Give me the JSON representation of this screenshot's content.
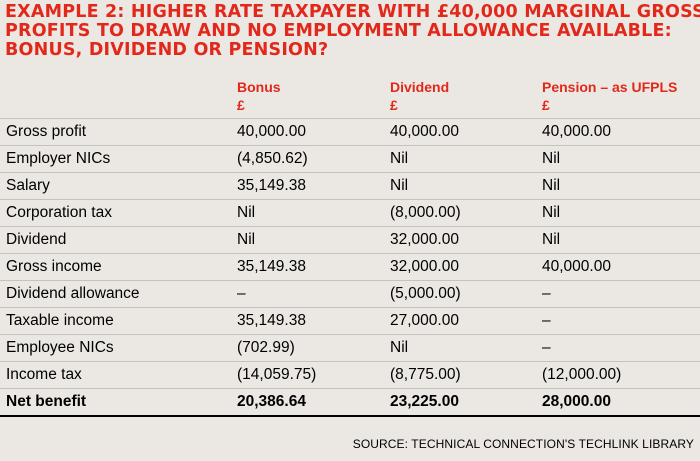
{
  "title_lines": [
    "EXAMPLE 2: HIGHER RATE TAXPAYER WITH £40,000 MARGINAL GROSS",
    "PROFITS TO DRAW AND NO EMPLOYMENT ALLOWANCE AVAILABLE:",
    "BONUS, DIVIDEND OR PENSION?"
  ],
  "columns": [
    {
      "name": "Bonus",
      "unit": "£"
    },
    {
      "name": "Dividend",
      "unit": "£"
    },
    {
      "name": "Pension – as UFPLS",
      "unit": "£"
    }
  ],
  "rows": [
    {
      "label": "Gross profit",
      "values": [
        "40,000.00",
        "40,000.00",
        "40,000.00"
      ]
    },
    {
      "label": "Employer NICs",
      "values": [
        "(4,850.62)",
        "Nil",
        "Nil"
      ]
    },
    {
      "label": "Salary",
      "values": [
        "35,149.38",
        "Nil",
        "Nil"
      ]
    },
    {
      "label": "Corporation tax",
      "values": [
        "Nil",
        "(8,000.00)",
        "Nil"
      ]
    },
    {
      "label": "Dividend",
      "values": [
        "Nil",
        "32,000.00",
        "Nil"
      ]
    },
    {
      "label": "Gross income",
      "values": [
        "35,149.38",
        "32,000.00",
        "40,000.00"
      ]
    },
    {
      "label": "Dividend allowance",
      "values": [
        "–",
        "(5,000.00)",
        "–"
      ]
    },
    {
      "label": "Taxable income",
      "values": [
        "35,149.38",
        "27,000.00",
        "–"
      ]
    },
    {
      "label": "Employee NICs",
      "values": [
        "(702.99)",
        "Nil",
        "–"
      ]
    },
    {
      "label": "Income tax",
      "values": [
        "(14,059.75)",
        "(8,775.00)",
        "(12,000.00)"
      ]
    },
    {
      "label": "Net benefit",
      "values": [
        "20,386.64",
        "23,225.00",
        "28,000.00"
      ]
    }
  ],
  "source": "SOURCE: TECHNICAL CONNECTION'S TECHLINK LIBRARY",
  "colors": {
    "accent": "#e2281b",
    "background": "#ebe8e3",
    "rule": "#c6c2bc"
  }
}
